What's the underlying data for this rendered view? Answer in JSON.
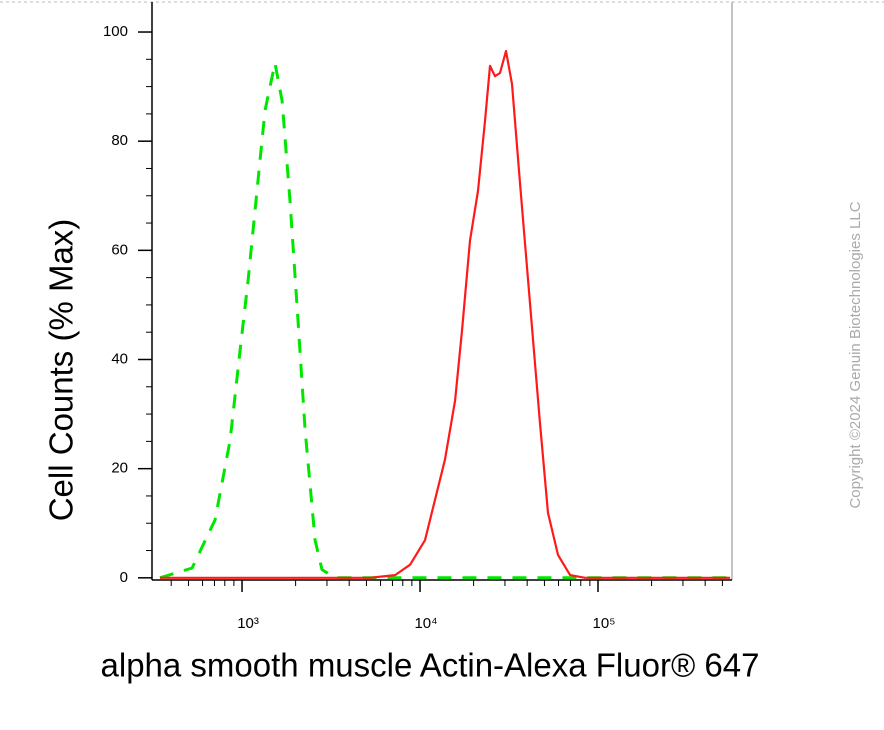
{
  "chart_data": {
    "type": "line",
    "xlabel": "alpha smooth muscle Actin-Alexa Fluor® 647",
    "ylabel": "Cell Counts (% Max)",
    "watermark": "Copyright ©2024 Genuin Biotechnologies LLC",
    "xscale": "log",
    "xlim": [
      312,
      566000
    ],
    "ylim": [
      -0.4,
      105.5
    ],
    "xticks": [
      {
        "value": 1000,
        "label": "10³"
      },
      {
        "value": 10000,
        "label": "10⁴"
      },
      {
        "value": 100000,
        "label": "10⁵"
      }
    ],
    "xminorticks": [
      400,
      500,
      600,
      700,
      800,
      900,
      2000,
      3000,
      4000,
      5000,
      6000,
      7000,
      8000,
      9000,
      20000,
      30000,
      40000,
      50000,
      60000,
      70000,
      80000,
      90000,
      200000,
      300000,
      400000,
      500000
    ],
    "yticks": [
      0,
      20,
      40,
      60,
      80,
      100
    ],
    "yminorticks": [
      5,
      10,
      15,
      25,
      30,
      35,
      45,
      50,
      55,
      65,
      70,
      75,
      85,
      90,
      95
    ],
    "series": [
      {
        "color": "#00e600",
        "dash": true,
        "x": [
          346,
          524,
          705,
          857,
          975,
          1081,
          1230,
          1346,
          1532,
          1679,
          1861,
          2064,
          2262,
          2572,
          2813,
          3327,
          552000
        ],
        "values": [
          0,
          1.8,
          10.6,
          25.2,
          41.7,
          54.5,
          72.8,
          85.6,
          94.3,
          87.4,
          69.1,
          47.2,
          27.1,
          6.9,
          1.5,
          0,
          0
        ]
      },
      {
        "color": "#ff1a1a",
        "dash": false,
        "x": [
          346,
          5236,
          7244,
          8790,
          10670,
          12140,
          13800,
          15740,
          17220,
          19100,
          21180,
          23190,
          24720,
          26370,
          28130,
          30410,
          32880,
          36480,
          41500,
          47210,
          52360,
          59570,
          69660,
          84530,
          552000
        ],
        "values": [
          0,
          0,
          0.5,
          2.4,
          6.9,
          14.3,
          21.6,
          32.5,
          45.3,
          61.8,
          70.9,
          83.7,
          93.8,
          91.9,
          92.5,
          96.5,
          90.5,
          72.1,
          50.3,
          28.3,
          11.9,
          4.2,
          0.5,
          0,
          0
        ]
      }
    ]
  }
}
